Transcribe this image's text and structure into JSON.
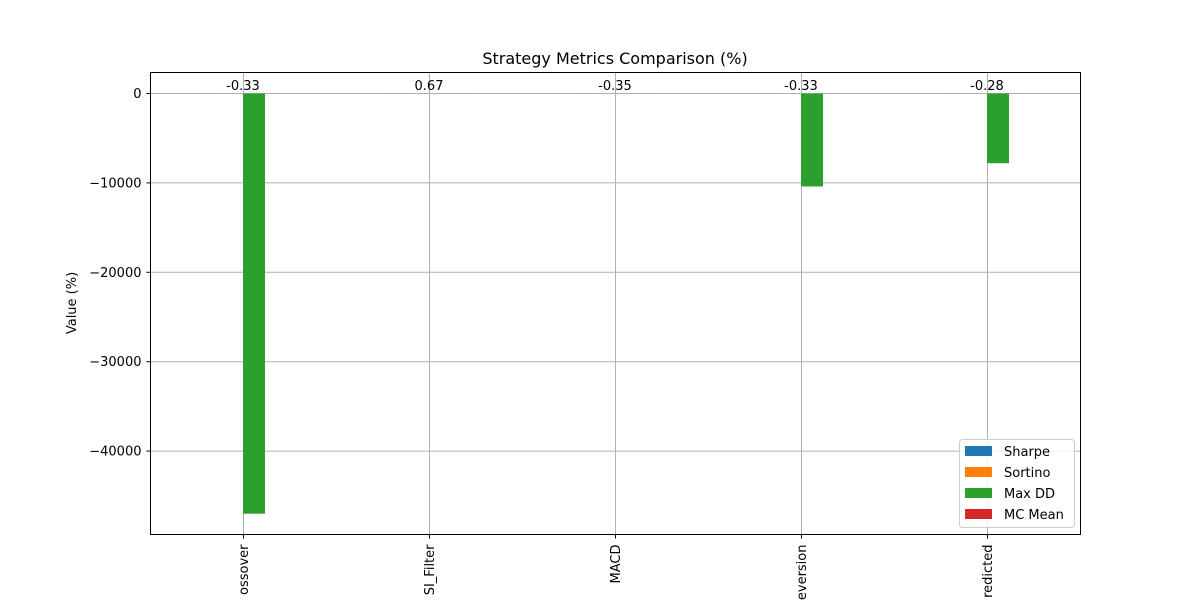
{
  "chart_data": {
    "type": "bar",
    "title": "Strategy Metrics Comparison (%)",
    "ylabel": "Value (%)",
    "xlabel": "",
    "categories": [
      "ossover",
      "SI_Filter",
      "MACD",
      "eversion",
      "redicted"
    ],
    "series": [
      {
        "name": "Sharpe",
        "color": "#1f77b4",
        "values": [
          -0.33,
          0.67,
          -0.35,
          -0.33,
          -0.28
        ]
      },
      {
        "name": "Sortino",
        "color": "#ff7f0e",
        "values": [
          0,
          0,
          0,
          0,
          0
        ]
      },
      {
        "name": "Max DD",
        "color": "#2ca02c",
        "values": [
          -47000,
          0,
          0,
          -10400,
          -7800
        ]
      },
      {
        "name": "MC Mean",
        "color": "#d62728",
        "values": [
          0,
          0,
          0,
          0,
          0
        ]
      }
    ],
    "bar_labels": [
      "-0.33",
      "0.67",
      "-0.35",
      "-0.33",
      "-0.28"
    ],
    "yticks": [
      0,
      -10000,
      -20000,
      -30000,
      -40000
    ],
    "ytick_labels": [
      "0",
      "−10000",
      "−20000",
      "−30000",
      "−40000"
    ],
    "ylim": [
      -49000,
      2400
    ],
    "grid": true,
    "legend_position": "lower-right"
  }
}
